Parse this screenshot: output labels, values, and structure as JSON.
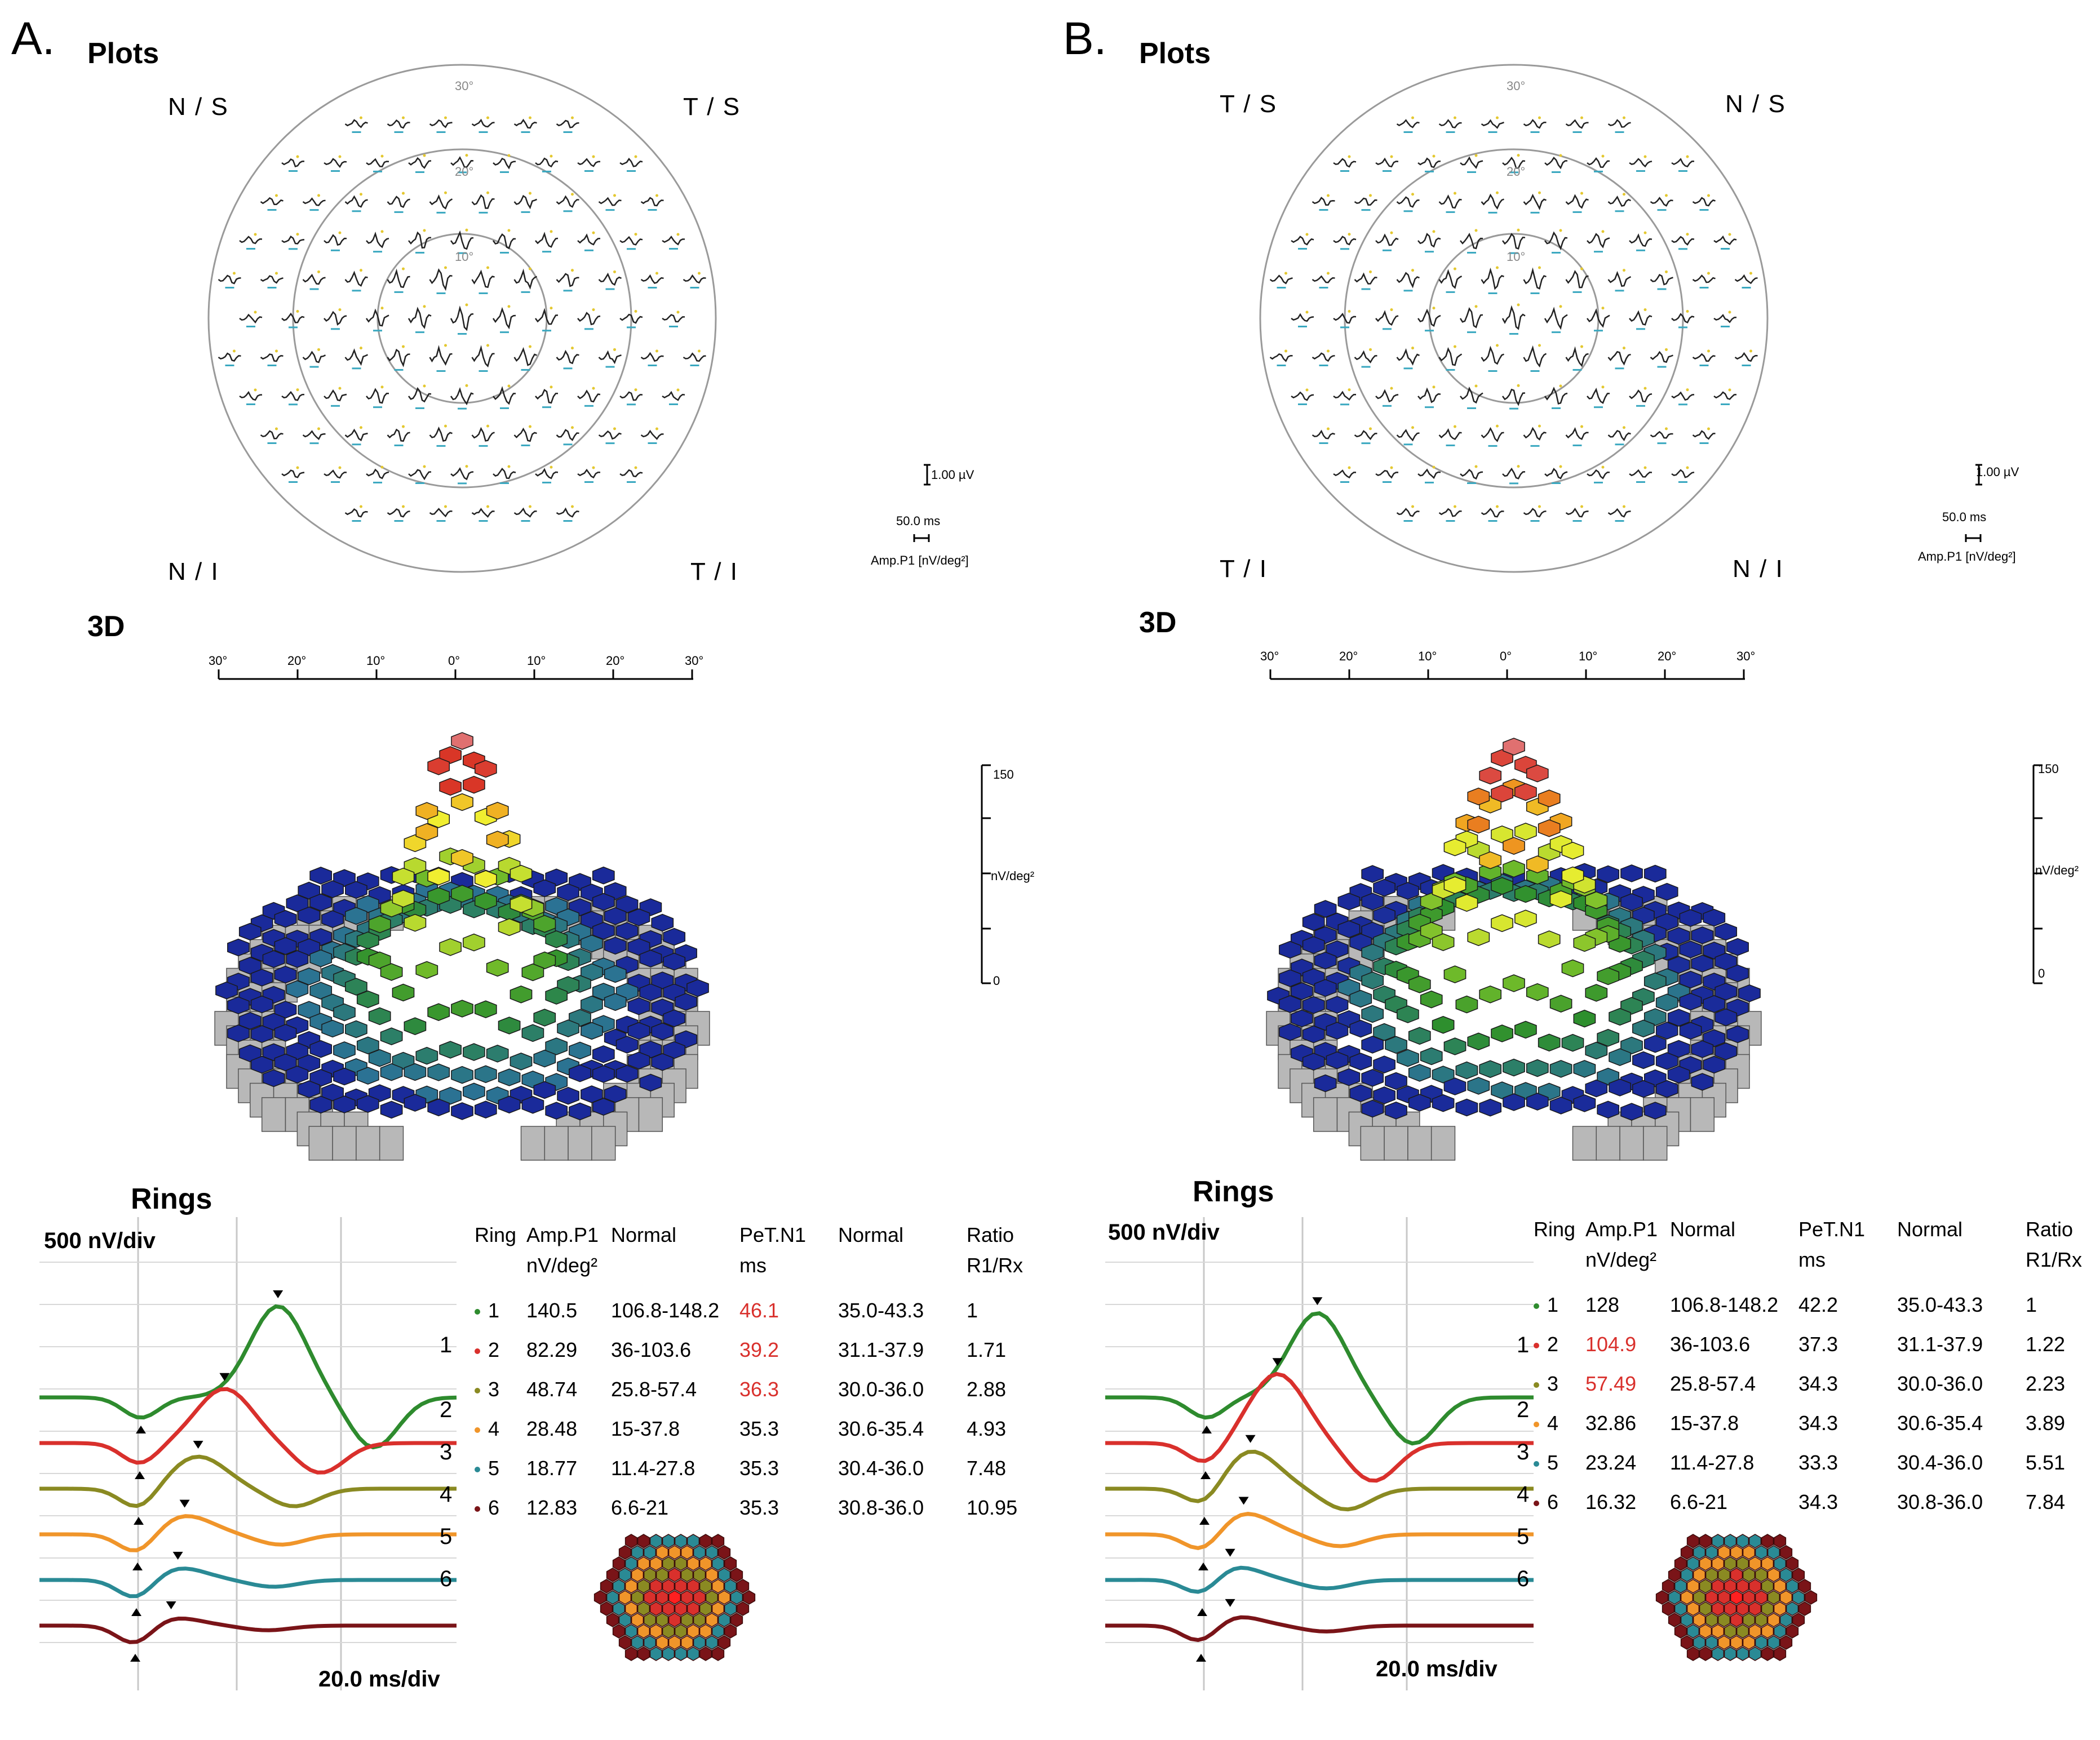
{
  "chart_data": [
    {
      "panel": "A.",
      "type": "table",
      "plots_title": "Plots",
      "quadrants": {
        "top_left": "N / S",
        "top_right": "T / S",
        "bottom_left": "N / I",
        "bottom_right": "T / I"
      },
      "ring_degree_labels": [
        "30°",
        "20°",
        "10°"
      ],
      "scale": {
        "amp": "1.00 µV",
        "time": "50.0 ms",
        "measure": "Amp.P1  [nV/deg²]"
      },
      "surface_title": "3D",
      "surface_axis_ticks": [
        "30°",
        "20°",
        "10°",
        "0°",
        "10°",
        "20°",
        "30°"
      ],
      "surface_zaxis": {
        "max": "150",
        "min": "0",
        "unit": "nV/deg²",
        "range": [
          0,
          150
        ]
      },
      "rings_title": "Rings",
      "rings_yscale": "500 nV/div",
      "rings_xscale": "20.0 ms/div",
      "ring_labels": [
        "1",
        "2",
        "3",
        "4",
        "5",
        "6"
      ],
      "headers": [
        "Ring",
        "Amp.P1",
        "nV/deg²",
        "Normal",
        "PeT.N1",
        "ms",
        "Normal",
        "Ratio",
        "R1/Rx"
      ],
      "rows": [
        {
          "ring": "1",
          "amp": "140.5",
          "amp_normal": "106.8-148.2",
          "pet": "46.1",
          "pet_normal": "35.0-43.3",
          "ratio": "1",
          "amp_flag": false,
          "pet_flag": true,
          "color": "#2e8b2e"
        },
        {
          "ring": "2",
          "amp": "82.29",
          "amp_normal": "36-103.6",
          "pet": "39.2",
          "pet_normal": "31.1-37.9",
          "ratio": "1.71",
          "amp_flag": false,
          "pet_flag": true,
          "color": "#d9302c"
        },
        {
          "ring": "3",
          "amp": "48.74",
          "amp_normal": "25.8-57.4",
          "pet": "36.3",
          "pet_normal": "30.0-36.0",
          "ratio": "2.88",
          "amp_flag": false,
          "pet_flag": true,
          "color": "#8a8a22"
        },
        {
          "ring": "4",
          "amp": "28.48",
          "amp_normal": "15-37.8",
          "pet": "35.3",
          "pet_normal": "30.6-35.4",
          "ratio": "4.93",
          "amp_flag": false,
          "pet_flag": false,
          "color": "#f0952a"
        },
        {
          "ring": "5",
          "amp": "18.77",
          "amp_normal": "11.4-27.8",
          "pet": "35.3",
          "pet_normal": "30.4-36.0",
          "ratio": "7.48",
          "amp_flag": false,
          "pet_flag": false,
          "color": "#2a8a95"
        },
        {
          "ring": "6",
          "amp": "12.83",
          "amp_normal": "6.6-21",
          "pet": "35.3",
          "pet_normal": "30.8-36.0",
          "ratio": "10.95",
          "amp_flag": false,
          "pet_flag": false,
          "color": "#7a1418"
        }
      ]
    },
    {
      "panel": "B.",
      "type": "table",
      "plots_title": "Plots",
      "quadrants": {
        "top_left": "T / S",
        "top_right": "N / S",
        "bottom_left": "T / I",
        "bottom_right": "N / I"
      },
      "ring_degree_labels": [
        "30°",
        "20°",
        "10°"
      ],
      "scale": {
        "amp": "1.00 µV",
        "time": "50.0 ms",
        "measure": "Amp.P1  [nV/deg²]"
      },
      "surface_title": "3D",
      "surface_axis_ticks": [
        "30°",
        "20°",
        "10°",
        "0°",
        "10°",
        "20°",
        "30°"
      ],
      "surface_zaxis": {
        "max": "150",
        "min": "0",
        "unit": "nV/deg²",
        "range": [
          0,
          150
        ]
      },
      "rings_title": "Rings",
      "rings_yscale": "500 nV/div",
      "rings_xscale": "20.0 ms/div",
      "ring_labels": [
        "1",
        "2",
        "3",
        "4",
        "5",
        "6"
      ],
      "headers": [
        "Ring",
        "Amp.P1",
        "nV/deg²",
        "Normal",
        "PeT.N1",
        "ms",
        "Normal",
        "Ratio",
        "R1/Rx"
      ],
      "rows": [
        {
          "ring": "1",
          "amp": "128",
          "amp_normal": "106.8-148.2",
          "pet": "42.2",
          "pet_normal": "35.0-43.3",
          "ratio": "1",
          "amp_flag": false,
          "pet_flag": false,
          "color": "#2e8b2e"
        },
        {
          "ring": "2",
          "amp": "104.9",
          "amp_normal": "36-103.6",
          "pet": "37.3",
          "pet_normal": "31.1-37.9",
          "ratio": "1.22",
          "amp_flag": true,
          "pet_flag": false,
          "color": "#d9302c"
        },
        {
          "ring": "3",
          "amp": "57.49",
          "amp_normal": "25.8-57.4",
          "pet": "34.3",
          "pet_normal": "30.0-36.0",
          "ratio": "2.23",
          "amp_flag": true,
          "pet_flag": false,
          "color": "#8a8a22"
        },
        {
          "ring": "4",
          "amp": "32.86",
          "amp_normal": "15-37.8",
          "pet": "34.3",
          "pet_normal": "30.6-35.4",
          "ratio": "3.89",
          "amp_flag": false,
          "pet_flag": false,
          "color": "#f0952a"
        },
        {
          "ring": "5",
          "amp": "23.24",
          "amp_normal": "11.4-27.8",
          "pet": "33.3",
          "pet_normal": "30.4-36.0",
          "ratio": "5.51",
          "amp_flag": false,
          "pet_flag": false,
          "color": "#2a8a95"
        },
        {
          "ring": "6",
          "amp": "16.32",
          "amp_normal": "6.6-21",
          "pet": "34.3",
          "pet_normal": "30.8-36.0",
          "ratio": "7.84",
          "amp_flag": false,
          "pet_flag": false,
          "color": "#7a1418"
        }
      ]
    }
  ],
  "colors": {
    "flag": "#d9302c",
    "text": "#000000",
    "circle": "#999999"
  }
}
